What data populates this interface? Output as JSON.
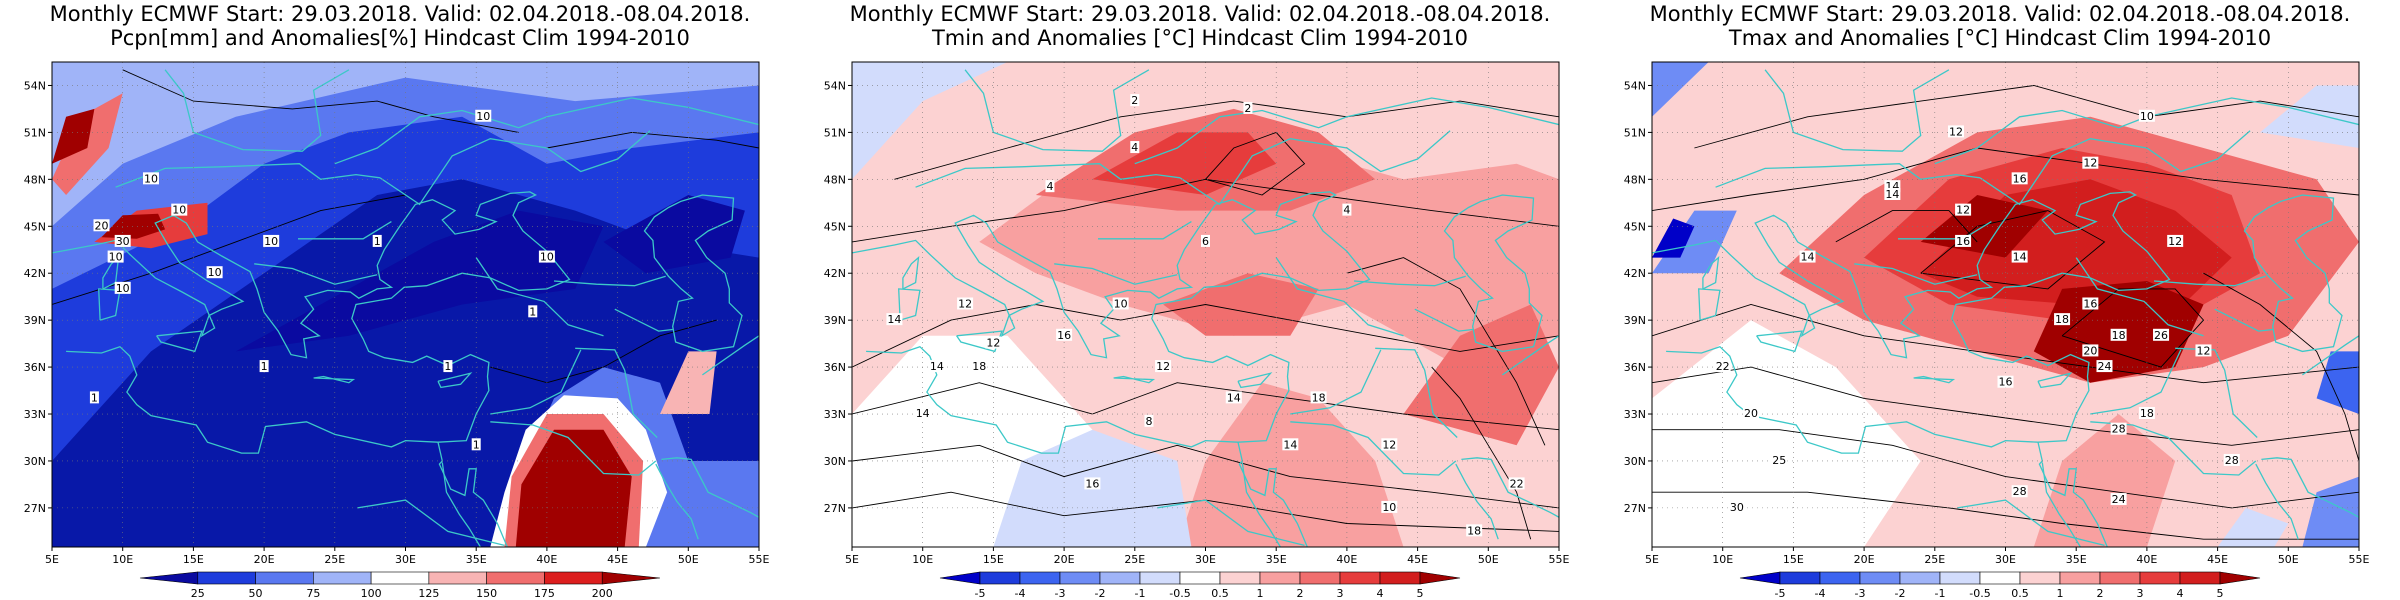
{
  "panels": [
    {
      "title_line1": "Monthly ECMWF Start: 29.03.2018. Valid: 02.04.2018.-08.04.2018.",
      "title_line2": "Pcpn[mm] and Anomalies[%] Hindcast Clim 1994-2010",
      "colorbar": {
        "labels": [
          "25",
          "50",
          "75",
          "100",
          "125",
          "150",
          "175",
          "200"
        ],
        "colors": [
          "#0a0aa0",
          "#1e3cdc",
          "#5a78f0",
          "#a0b4f8",
          "#ffffff",
          "#f8b4b4",
          "#f06e6e",
          "#dc1e1e",
          "#a00000"
        ]
      },
      "contour_labels": [
        "10",
        "10",
        "10",
        "10",
        "10",
        "10",
        "10",
        "1",
        "1",
        "1",
        "1",
        "1",
        "30",
        "20",
        "10",
        "1"
      ]
    },
    {
      "title_line1": "Monthly ECMWF Start: 29.03.2018. Valid: 02.04.2018.-08.04.2018.",
      "title_line2": "Tmin and Anomalies [°C] Hindcast Clim 1994-2010",
      "colorbar": {
        "labels": [
          "-5",
          "-4",
          "-3",
          "-2",
          "-1",
          "-0.5",
          "0.5",
          "1",
          "2",
          "3",
          "4",
          "5"
        ],
        "colors": [
          "#0000c8",
          "#1e3cdc",
          "#3c64f0",
          "#6e8cf5",
          "#a0b4f8",
          "#d2dcfc",
          "#ffffff",
          "#fcd2d2",
          "#f8a0a0",
          "#f06e6e",
          "#e63c3c",
          "#d21e1e",
          "#a00000"
        ]
      },
      "contour_labels": [
        "2",
        "4",
        "2",
        "4",
        "6",
        "4",
        "14",
        "12",
        "12",
        "14",
        "16",
        "8",
        "10",
        "12",
        "14",
        "18",
        "14",
        "12",
        "10",
        "18",
        "14",
        "16",
        "22",
        "18"
      ]
    },
    {
      "title_line1": "Monthly ECMWF Start: 29.03.2018. Valid: 02.04.2018.-08.04.2018.",
      "title_line2": "Tmax and Anomalies [°C] Hindcast Clim 1994-2010",
      "colorbar": {
        "labels": [
          "-5",
          "-4",
          "-3",
          "-2",
          "-1",
          "-0.5",
          "0.5",
          "1",
          "2",
          "3",
          "4",
          "5"
        ],
        "colors": [
          "#0000c8",
          "#1e3cdc",
          "#3c64f0",
          "#6e8cf5",
          "#a0b4f8",
          "#d2dcfc",
          "#ffffff",
          "#fcd2d2",
          "#f8a0a0",
          "#f06e6e",
          "#e63c3c",
          "#d21e1e",
          "#a00000"
        ]
      },
      "contour_labels": [
        "10",
        "12",
        "12",
        "14",
        "16",
        "12",
        "14",
        "14",
        "16",
        "18",
        "12",
        "16",
        "18",
        "20",
        "12",
        "18",
        "22",
        "20",
        "24",
        "26",
        "28",
        "25",
        "30",
        "28",
        "14",
        "16",
        "28",
        "24"
      ]
    }
  ],
  "lat_labels": [
    "54N",
    "51N",
    "48N",
    "45N",
    "42N",
    "39N",
    "36N",
    "33N",
    "30N",
    "27N"
  ],
  "lon_labels": [
    "5E",
    "10E",
    "15E",
    "20E",
    "25E",
    "30E",
    "35E",
    "40E",
    "45E",
    "50E",
    "55E"
  ]
}
